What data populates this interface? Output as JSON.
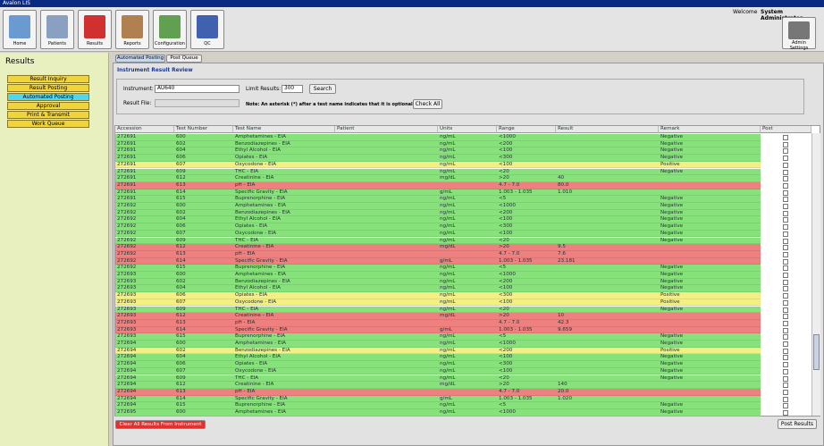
{
  "window": {
    "title": "Avalon LIS",
    "welcome": "Welcome",
    "user": "System Administrator"
  },
  "toolbar": {
    "buttons": [
      "Home",
      "Patients",
      "Results",
      "Reports",
      "Configuration",
      "QC"
    ],
    "admin": "Admin Settings"
  },
  "sidebar": {
    "title": "Results",
    "items": [
      "Result Inquiry",
      "Result Posting",
      "Automated Posting",
      "Approval",
      "Print & Transmit",
      "Work Queue"
    ],
    "selected": 2
  },
  "tabs": [
    "Automated Posting",
    "Post Queue"
  ],
  "section_title": "Instrument Result Review",
  "form": {
    "instrument_label": "Instrument:",
    "instrument": "AU640",
    "limit_label": "Limit Results:",
    "limit": "300",
    "search": "Search",
    "file_label": "Result File:",
    "note": "Note: An asterisk (*) after a test name indicates that it is optional",
    "check_all": "Check All"
  },
  "table": {
    "columns": [
      "Accession",
      "Test Number",
      "Test Name",
      "Patient",
      "Units",
      "Range",
      "Result",
      "Remark",
      "Post"
    ],
    "rows": [
      {
        "accession": "272691",
        "test_number": "600",
        "test_name": "Amphetamines - EIA",
        "units": "ng/mL",
        "range": "<1000",
        "remark": "Negative",
        "color": "#88e27c"
      },
      {
        "accession": "272691",
        "test_number": "602",
        "test_name": "Benzodiazepines - EIA",
        "units": "ng/mL",
        "range": "<200",
        "remark": "Negative",
        "color": "#88e27c"
      },
      {
        "accession": "272691",
        "test_number": "604",
        "test_name": "Ethyl Alcohol - EIA",
        "units": "ng/mL",
        "range": "<100",
        "remark": "Negative",
        "color": "#88e27c"
      },
      {
        "accession": "272691",
        "test_number": "606",
        "test_name": "Opiates - EIA",
        "units": "ng/mL",
        "range": "<300",
        "remark": "Negative",
        "color": "#88e27c"
      },
      {
        "accession": "272691",
        "test_number": "607",
        "test_name": "Oxycodone - EIA",
        "units": "ng/mL",
        "range": "<100",
        "remark": "Positive",
        "color": "#f4ef82"
      },
      {
        "accession": "272691",
        "test_number": "609",
        "test_name": "THC - EIA",
        "units": "ng/mL",
        "range": "<20",
        "remark": "Negative",
        "color": "#88e27c"
      },
      {
        "accession": "272691",
        "test_number": "612",
        "test_name": "Creatinine - EIA",
        "units": "mg/dL",
        "range": ">20",
        "result": "40",
        "color": "#88e27c"
      },
      {
        "accession": "272691",
        "test_number": "613",
        "test_name": "pH - EIA",
        "range": "4.7 - 7.0",
        "result": "80.0",
        "color": "#ee8080"
      },
      {
        "accession": "272691",
        "test_number": "614",
        "test_name": "Specific Gravity - EIA",
        "units": "g/mL",
        "range": "1.003 - 1.035",
        "result": "1.010",
        "color": "#88e27c"
      },
      {
        "accession": "272691",
        "test_number": "615",
        "test_name": "Buprenorphine - EIA",
        "units": "ng/mL",
        "range": "<5",
        "remark": "Negative",
        "color": "#88e27c"
      },
      {
        "accession": "272692",
        "test_number": "600",
        "test_name": "Amphetamines - EIA",
        "units": "ng/mL",
        "range": "<1000",
        "remark": "Negative",
        "color": "#88e27c"
      },
      {
        "accession": "272692",
        "test_number": "602",
        "test_name": "Benzodiazepines - EIA",
        "units": "ng/mL",
        "range": "<200",
        "remark": "Negative",
        "color": "#88e27c"
      },
      {
        "accession": "272692",
        "test_number": "604",
        "test_name": "Ethyl Alcohol - EIA",
        "units": "ng/mL",
        "range": "<100",
        "remark": "Negative",
        "color": "#88e27c"
      },
      {
        "accession": "272692",
        "test_number": "606",
        "test_name": "Opiates - EIA",
        "units": "ng/mL",
        "range": "<300",
        "remark": "Negative",
        "color": "#88e27c"
      },
      {
        "accession": "272692",
        "test_number": "607",
        "test_name": "Oxycodone - EIA",
        "units": "ng/mL",
        "range": "<100",
        "remark": "Negative",
        "color": "#88e27c"
      },
      {
        "accession": "272692",
        "test_number": "609",
        "test_name": "THC - EIA",
        "units": "ng/mL",
        "range": "<20",
        "remark": "Negative",
        "color": "#88e27c"
      },
      {
        "accession": "272692",
        "test_number": "612",
        "test_name": "Creatinine - EIA",
        "units": "mg/dL",
        "range": ">20",
        "result": "9.5",
        "color": "#ee8080"
      },
      {
        "accession": "272692",
        "test_number": "613",
        "test_name": "pH - EIA",
        "range": "4.7 - 7.0",
        "result": "7.6",
        "color": "#ee8080"
      },
      {
        "accession": "272692",
        "test_number": "614",
        "test_name": "Specific Gravity - EIA",
        "units": "g/mL",
        "range": "1.003 - 1.035",
        "result": "23.181",
        "color": "#ee8080"
      },
      {
        "accession": "272692",
        "test_number": "615",
        "test_name": "Buprenorphine - EIA",
        "units": "ng/mL",
        "range": "<5",
        "remark": "Negative",
        "color": "#88e27c"
      },
      {
        "accession": "272693",
        "test_number": "600",
        "test_name": "Amphetamines - EIA",
        "units": "ng/mL",
        "range": "<1000",
        "remark": "Negative",
        "color": "#88e27c"
      },
      {
        "accession": "272693",
        "test_number": "602",
        "test_name": "Benzodiazepines - EIA",
        "units": "ng/mL",
        "range": "<200",
        "remark": "Negative",
        "color": "#88e27c"
      },
      {
        "accession": "272693",
        "test_number": "604",
        "test_name": "Ethyl Alcohol - EIA",
        "units": "ng/mL",
        "range": "<100",
        "remark": "Negative",
        "color": "#88e27c"
      },
      {
        "accession": "272693",
        "test_number": "606",
        "test_name": "Opiates - EIA",
        "units": "ng/mL",
        "range": "<300",
        "remark": "Positive",
        "color": "#f4ef82"
      },
      {
        "accession": "272693",
        "test_number": "607",
        "test_name": "Oxycodone - EIA",
        "units": "ng/mL",
        "range": "<100",
        "remark": "Positive",
        "color": "#f4ef82"
      },
      {
        "accession": "272693",
        "test_number": "609",
        "test_name": "THC - EIA",
        "units": "ng/mL",
        "range": "<20",
        "remark": "Negative",
        "color": "#88e27c"
      },
      {
        "accession": "272693",
        "test_number": "612",
        "test_name": "Creatinine - EIA",
        "units": "mg/dL",
        "range": ">20",
        "result": "10",
        "color": "#ee8080"
      },
      {
        "accession": "272693",
        "test_number": "613",
        "test_name": "pH - EIA",
        "range": "4.7 - 7.0",
        "result": "42.3",
        "color": "#ee8080"
      },
      {
        "accession": "272693",
        "test_number": "614",
        "test_name": "Specific Gravity - EIA",
        "units": "g/mL",
        "range": "1.003 - 1.035",
        "result": "9.659",
        "color": "#ee8080"
      },
      {
        "accession": "272693",
        "test_number": "615",
        "test_name": "Buprenorphine - EIA",
        "units": "ng/mL",
        "range": "<5",
        "remark": "Negative",
        "color": "#88e27c"
      },
      {
        "accession": "272694",
        "test_number": "600",
        "test_name": "Amphetamines - EIA",
        "units": "ng/mL",
        "range": "<1000",
        "remark": "Negative",
        "color": "#88e27c"
      },
      {
        "accession": "272694",
        "test_number": "602",
        "test_name": "Benzodiazepines - EIA",
        "units": "ng/mL",
        "range": "<200",
        "remark": "Positive",
        "color": "#f4ef82"
      },
      {
        "accession": "272694",
        "test_number": "604",
        "test_name": "Ethyl Alcohol - EIA",
        "units": "ng/mL",
        "range": "<100",
        "remark": "Negative",
        "color": "#88e27c"
      },
      {
        "accession": "272694",
        "test_number": "606",
        "test_name": "Opiates - EIA",
        "units": "ng/mL",
        "range": "<300",
        "remark": "Negative",
        "color": "#88e27c"
      },
      {
        "accession": "272694",
        "test_number": "607",
        "test_name": "Oxycodone - EIA",
        "units": "ng/mL",
        "range": "<100",
        "remark": "Negative",
        "color": "#88e27c"
      },
      {
        "accession": "272694",
        "test_number": "609",
        "test_name": "THC - EIA",
        "units": "ng/mL",
        "range": "<20",
        "remark": "Negative",
        "color": "#88e27c"
      },
      {
        "accession": "272694",
        "test_number": "612",
        "test_name": "Creatinine - EIA",
        "units": "mg/dL",
        "range": ">20",
        "result": "140",
        "color": "#88e27c"
      },
      {
        "accession": "272694",
        "test_number": "613",
        "test_name": "pH - EIA",
        "range": "4.7 - 7.0",
        "result": "20.0",
        "color": "#ee8080"
      },
      {
        "accession": "272694",
        "test_number": "614",
        "test_name": "Specific Gravity - EIA",
        "units": "g/mL",
        "range": "1.003 - 1.035",
        "result": "1.020",
        "color": "#88e27c"
      },
      {
        "accession": "272694",
        "test_number": "615",
        "test_name": "Buprenorphine - EIA",
        "units": "ng/mL",
        "range": "<5",
        "remark": "Negative",
        "color": "#88e27c"
      },
      {
        "accession": "272695",
        "test_number": "600",
        "test_name": "Amphetamines - EIA",
        "units": "ng/mL",
        "range": "<1000",
        "remark": "Negative",
        "color": "#88e27c"
      }
    ]
  },
  "buttons": {
    "clear": "Clear All Results From Instrument",
    "post": "Post Results"
  }
}
